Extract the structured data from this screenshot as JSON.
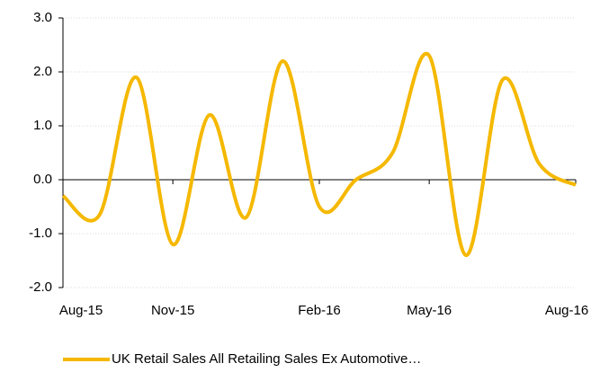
{
  "chart_data": {
    "type": "line",
    "categories": [
      "Aug-15",
      null,
      null,
      "Nov-15",
      null,
      null,
      null,
      "Feb-16",
      null,
      null,
      "May-16",
      null,
      null,
      null,
      "Aug-16"
    ],
    "series": [
      {
        "name": "UK Retail Sales All Retailing Sales Ex Automotive…",
        "color": "#f5b800",
        "values": [
          -0.3,
          -0.65,
          1.9,
          -1.2,
          1.2,
          -0.7,
          2.2,
          -0.5,
          0.0,
          0.5,
          2.3,
          -1.4,
          1.85,
          0.3,
          -0.1
        ]
      }
    ],
    "ylim": [
      -2.0,
      3.0
    ],
    "yticks": [
      {
        "value": -2,
        "label": "-2.0"
      },
      {
        "value": -1,
        "label": "-1.0"
      },
      {
        "value": 0,
        "label": "0.0"
      },
      {
        "value": 1,
        "label": "1.0"
      },
      {
        "value": 2,
        "label": "2.0"
      },
      {
        "value": 3,
        "label": "3.0"
      }
    ],
    "grid": true,
    "legend": "bottom"
  }
}
